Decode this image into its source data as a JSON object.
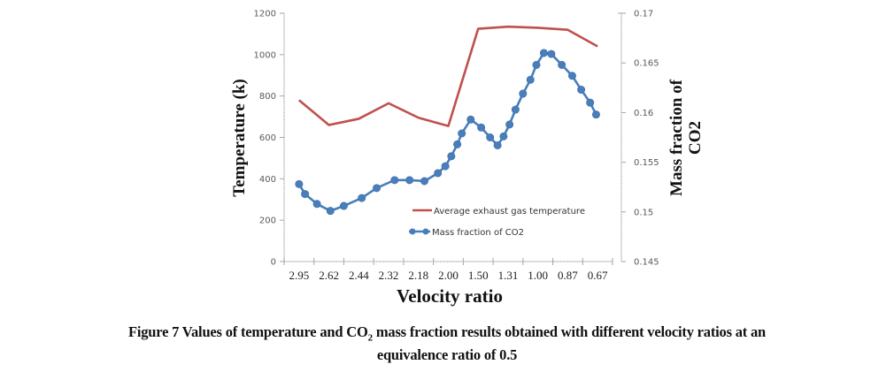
{
  "chart_data": {
    "type": "line",
    "title": "",
    "xlabel": "Velocity ratio",
    "ylabel": "Temperature (k)",
    "y2label": "Mass fraction of CO2",
    "categories": [
      "2.95",
      "2.62",
      "2.44",
      "2.32",
      "2.18",
      "2.00",
      "1.50",
      "1.31",
      "1.00",
      "0.87",
      "0.67"
    ],
    "ylim": [
      0,
      1200
    ],
    "yticks": [
      "0",
      "200",
      "400",
      "600",
      "800",
      "1000",
      "1200"
    ],
    "y2lim": [
      0.145,
      0.17
    ],
    "y2ticks": [
      "0.145",
      "0.15",
      "0.155",
      "0.16",
      "0.165",
      "0.17"
    ],
    "grid": false,
    "legend_position": "lower-center",
    "series": [
      {
        "name": "Average exhaust gas temperature",
        "axis": "left",
        "color": "#c0504d",
        "markers": false,
        "x": [
          0,
          1,
          2,
          3,
          4,
          5,
          6,
          7,
          8,
          9,
          10
        ],
        "values": [
          780,
          660,
          690,
          765,
          695,
          655,
          1125,
          1135,
          1130,
          1120,
          1040
        ]
      },
      {
        "name": "Mass fraction of CO2",
        "axis": "right",
        "color": "#4a7ebb",
        "markers": true,
        "x": [
          0.0,
          0.2,
          0.6,
          1.05,
          1.5,
          2.1,
          2.6,
          3.2,
          3.7,
          4.2,
          4.65,
          4.9,
          5.1,
          5.3,
          5.45,
          5.75,
          6.1,
          6.4,
          6.65,
          6.85,
          7.05,
          7.25,
          7.5,
          7.75,
          7.95,
          8.2,
          8.45,
          8.8,
          9.15,
          9.45,
          9.75,
          9.95
        ],
        "values": [
          0.1528,
          0.1518,
          0.1508,
          0.1501,
          0.1506,
          0.1514,
          0.1524,
          0.1532,
          0.1532,
          0.1531,
          0.1539,
          0.1546,
          0.1556,
          0.1568,
          0.1579,
          0.1593,
          0.1585,
          0.1575,
          0.1567,
          0.1576,
          0.1588,
          0.1603,
          0.1619,
          0.1633,
          0.1648,
          0.166,
          0.1659,
          0.1648,
          0.1637,
          0.1623,
          0.161,
          0.1598
        ]
      }
    ]
  },
  "caption": {
    "line1_prefix": "Figure 7 Values of temperature and CO",
    "line1_sub": "2",
    "line1_suffix": " mass fraction results obtained with different velocity ratios at an",
    "line2": "equivalence ratio of 0.5"
  }
}
